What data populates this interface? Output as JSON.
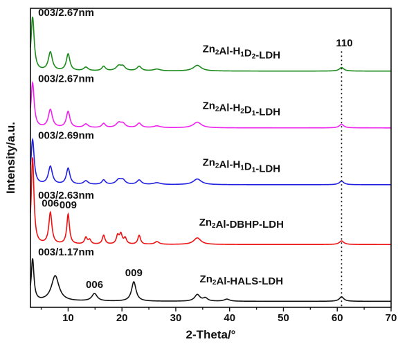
{
  "chart_data": {
    "type": "line",
    "xlabel": "2-Theta/°",
    "ylabel": "Intensity/a.u.",
    "xlim": [
      3,
      70
    ],
    "xticks": [
      10,
      20,
      30,
      40,
      50,
      60,
      70
    ],
    "ylim": [
      0,
      100
    ],
    "yticks_shown": false,
    "grid": false,
    "reference_line": {
      "x": 60.8,
      "style": "dotted",
      "label": "110"
    },
    "series": [
      {
        "name": "Zn2Al-H1D2-LDH",
        "label_parts": [
          [
            "Zn",
            false
          ],
          [
            "2",
            true
          ],
          [
            "Al-H",
            false
          ],
          [
            "1",
            true
          ],
          [
            "D",
            false
          ],
          [
            "2",
            true
          ],
          [
            "-LDH",
            false
          ]
        ],
        "color": "#1a8a1a",
        "baseline": 79,
        "annotation": "003/2.67nm",
        "peaks": [
          [
            3.4,
            18,
            0.35
          ],
          [
            6.7,
            6.2,
            0.45
          ],
          [
            10.0,
            5.6,
            0.4
          ],
          [
            13.3,
            1.2,
            0.5
          ],
          [
            16.6,
            1.5,
            0.4
          ],
          [
            19.4,
            1.6,
            0.6
          ],
          [
            20.2,
            1.3,
            0.5
          ],
          [
            23.2,
            1.5,
            0.5
          ],
          [
            26.5,
            0.6,
            0.8
          ],
          [
            34.0,
            1.9,
            0.9
          ],
          [
            60.8,
            1.2,
            0.5
          ]
        ]
      },
      {
        "name": "Zn2Al-H2D1-LDH",
        "label_parts": [
          [
            "Zn",
            false
          ],
          [
            "2",
            true
          ],
          [
            "Al-H",
            false
          ],
          [
            "2",
            true
          ],
          [
            "D",
            false
          ],
          [
            "1",
            true
          ],
          [
            "-LDH",
            false
          ]
        ],
        "color": "#ee22ee",
        "baseline": 60,
        "annotation": "003/2.67nm",
        "peaks": [
          [
            3.4,
            15,
            0.35
          ],
          [
            6.7,
            6.0,
            0.45
          ],
          [
            10.0,
            5.4,
            0.4
          ],
          [
            13.3,
            1.2,
            0.5
          ],
          [
            16.6,
            1.4,
            0.4
          ],
          [
            19.4,
            1.6,
            0.6
          ],
          [
            20.2,
            1.2,
            0.5
          ],
          [
            23.2,
            1.5,
            0.5
          ],
          [
            26.5,
            0.6,
            0.8
          ],
          [
            34.0,
            1.9,
            0.9
          ],
          [
            60.8,
            1.2,
            0.5
          ]
        ]
      },
      {
        "name": "Zn2Al-H1D1-LDH",
        "label_parts": [
          [
            "Zn",
            false
          ],
          [
            "2",
            true
          ],
          [
            "Al-H",
            false
          ],
          [
            "1",
            true
          ],
          [
            "D",
            false
          ],
          [
            "1",
            true
          ],
          [
            "-LDH",
            false
          ]
        ],
        "color": "#1f1fe0",
        "baseline": 41,
        "annotation": "003/2.69nm",
        "peaks": [
          [
            3.4,
            15,
            0.35
          ],
          [
            6.7,
            6.0,
            0.45
          ],
          [
            10.0,
            5.4,
            0.4
          ],
          [
            13.3,
            1.2,
            0.5
          ],
          [
            16.6,
            1.5,
            0.4
          ],
          [
            19.4,
            1.6,
            0.6
          ],
          [
            20.2,
            1.3,
            0.5
          ],
          [
            23.2,
            1.5,
            0.5
          ],
          [
            26.5,
            0.6,
            0.8
          ],
          [
            34.0,
            1.9,
            0.9
          ],
          [
            60.8,
            1.2,
            0.5
          ]
        ]
      },
      {
        "name": "Zn2Al-DBHP-LDH",
        "label_parts": [
          [
            "Zn",
            false
          ],
          [
            "2",
            true
          ],
          [
            "Al-DBHP-LDH",
            false
          ]
        ],
        "color": "#ee1111",
        "baseline": 21,
        "annotation": "003/2.63nm",
        "peaks": [
          [
            3.4,
            29,
            0.3
          ],
          [
            6.7,
            10.5,
            0.35
          ],
          [
            10.0,
            10.0,
            0.3
          ],
          [
            13.3,
            2.2,
            0.3
          ],
          [
            14.0,
            1.4,
            0.3
          ],
          [
            16.6,
            3.0,
            0.3
          ],
          [
            19.2,
            2.8,
            0.3
          ],
          [
            19.8,
            3.2,
            0.3
          ],
          [
            20.6,
            2.0,
            0.3
          ],
          [
            23.2,
            3.0,
            0.3
          ],
          [
            26.5,
            0.9,
            0.5
          ],
          [
            34.0,
            2.2,
            0.8
          ],
          [
            60.8,
            1.2,
            0.5
          ]
        ]
      },
      {
        "name": "Zn2Al-HALS-LDH",
        "label_parts": [
          [
            "Zn",
            false
          ],
          [
            "2",
            true
          ],
          [
            "Al-HALS-LDH",
            false
          ]
        ],
        "color": "#111111",
        "baseline": 2,
        "annotation": "003/1.17nm",
        "peaks": [
          [
            3.4,
            14,
            0.3
          ],
          [
            7.6,
            8.5,
            0.85
          ],
          [
            14.9,
            2.5,
            0.6
          ],
          [
            22.2,
            6.5,
            0.5
          ],
          [
            34.0,
            2.2,
            0.6
          ],
          [
            35.5,
            1.0,
            0.5
          ],
          [
            39.5,
            0.7,
            0.6
          ],
          [
            60.8,
            1.5,
            0.5
          ]
        ]
      }
    ],
    "annotations": [
      {
        "text": "006",
        "series": "Zn2Al-DBHP-LDH",
        "x": 6.7
      },
      {
        "text": "009",
        "series": "Zn2Al-DBHP-LDH",
        "x": 10.0
      },
      {
        "text": "006",
        "series": "Zn2Al-HALS-LDH",
        "x": 14.9
      },
      {
        "text": "009",
        "series": "Zn2Al-HALS-LDH",
        "x": 22.2
      }
    ]
  }
}
